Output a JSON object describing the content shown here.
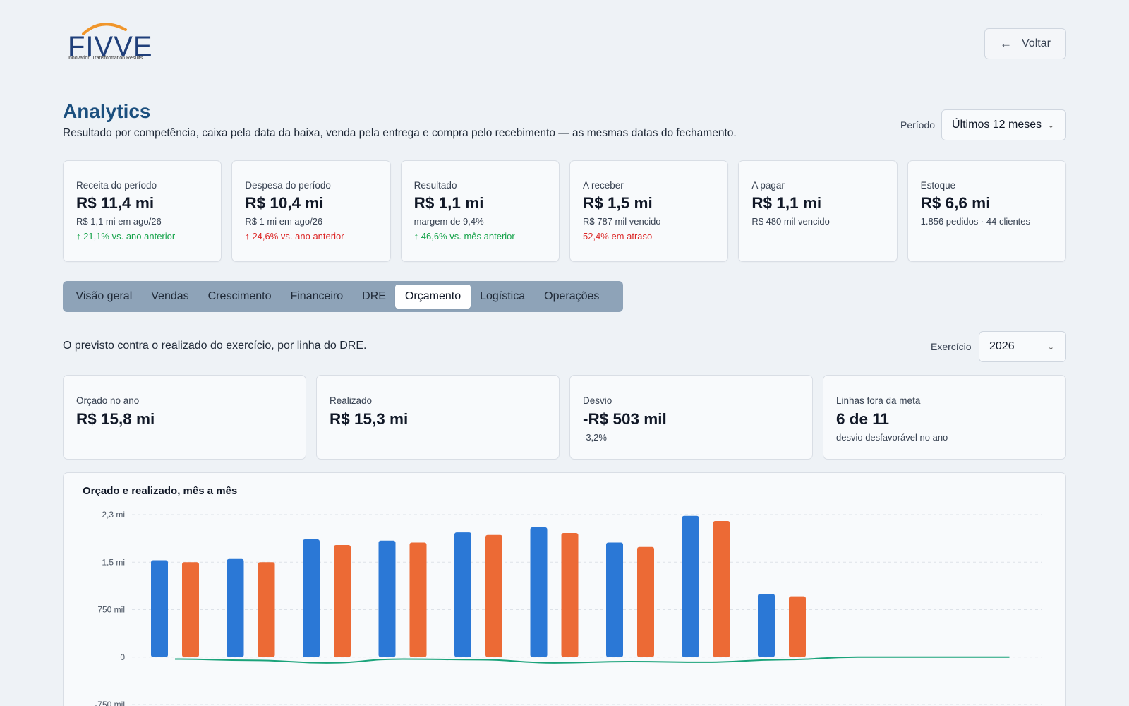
{
  "brand": {
    "name": "FIVVE",
    "tagline": "Innovation.Transformation.Results."
  },
  "header": {
    "back_label": "Voltar"
  },
  "page": {
    "title": "Analytics",
    "subtitle": "Resultado por competência, caixa pela data da baixa, venda pela entrega e compra pelo recebimento — as mesmas datas do fechamento.",
    "period_label": "Período",
    "period_value": "Últimos 12 meses"
  },
  "kpis": [
    {
      "label": "Receita do período",
      "value": "R$ 11,4 mi",
      "sub": "R$ 1,1 mi em ago/26",
      "trend": "21,1% vs. ano anterior",
      "trend_dir": "up",
      "trend_color": "#16a34a"
    },
    {
      "label": "Despesa do período",
      "value": "R$ 10,4 mi",
      "sub": "R$ 1 mi em ago/26",
      "trend": "24,6% vs. ano anterior",
      "trend_dir": "up",
      "trend_color": "#dc2626"
    },
    {
      "label": "Resultado",
      "value": "R$ 1,1 mi",
      "sub": "margem de 9,4%",
      "trend": "46,6% vs. mês anterior",
      "trend_dir": "up",
      "trend_color": "#16a34a"
    },
    {
      "label": "A receber",
      "value": "R$ 1,5 mi",
      "sub": "R$ 787 mil vencido",
      "trend": "52,4% em atraso",
      "trend_dir": "none",
      "trend_color": "#dc2626"
    },
    {
      "label": "A pagar",
      "value": "R$ 1,1 mi",
      "sub": "R$ 480 mil vencido",
      "trend": "",
      "trend_dir": "none",
      "trend_color": ""
    },
    {
      "label": "Estoque",
      "value": "R$ 6,6 mi",
      "sub": "1.856 pedidos · 44 clientes",
      "trend": "",
      "trend_dir": "none",
      "trend_color": ""
    }
  ],
  "tabs": [
    {
      "label": "Visão geral",
      "active": false
    },
    {
      "label": "Vendas",
      "active": false
    },
    {
      "label": "Crescimento",
      "active": false
    },
    {
      "label": "Financeiro",
      "active": false
    },
    {
      "label": "DRE",
      "active": false
    },
    {
      "label": "Orçamento",
      "active": true
    },
    {
      "label": "Logística",
      "active": false
    },
    {
      "label": "Operações",
      "active": false
    }
  ],
  "budget": {
    "description": "O previsto contra o realizado do exercício, por linha do DRE.",
    "year_label": "Exercício",
    "year_value": "2026",
    "kpis": [
      {
        "label": "Orçado no ano",
        "value": "R$ 15,8 mi",
        "sub": ""
      },
      {
        "label": "Realizado",
        "value": "R$ 15,3 mi",
        "sub": ""
      },
      {
        "label": "Desvio",
        "value": "-R$ 503 mil",
        "sub": "-3,2%"
      },
      {
        "label": "Linhas fora da meta",
        "value": "6 de 11",
        "sub": "desvio desfavorável no ano"
      }
    ]
  },
  "colors": {
    "budget": "#2b78d6",
    "actual": "#ec6a35",
    "deviation": "#1aa37a"
  },
  "chart_data": {
    "type": "bar",
    "title": "Orçado e realizado, mês a mês",
    "y_ticks": [
      {
        "value": 2250000,
        "label": "2,3 mi"
      },
      {
        "value": 1500000,
        "label": "1,5 mi"
      },
      {
        "value": 750000,
        "label": "750 mil"
      },
      {
        "value": 0,
        "label": "0"
      },
      {
        "value": -750000,
        "label": "-750 mil"
      }
    ],
    "ylim": [
      -750000,
      2250000
    ],
    "series": [
      {
        "key": "budget",
        "values": [
          1530000,
          1550000,
          1860000,
          1840000,
          1970000,
          2050000,
          1810000,
          2230000,
          1000000,
          0,
          0,
          0
        ]
      },
      {
        "key": "actual",
        "values": [
          1500000,
          1500000,
          1770000,
          1810000,
          1930000,
          1960000,
          1740000,
          2150000,
          960000,
          0,
          0,
          0
        ]
      },
      {
        "key": "deviation",
        "type": "line",
        "values": [
          -30000,
          -50000,
          -90000,
          -30000,
          -40000,
          -90000,
          -70000,
          -80000,
          -40000,
          0,
          0,
          0
        ]
      }
    ],
    "grid": true
  }
}
